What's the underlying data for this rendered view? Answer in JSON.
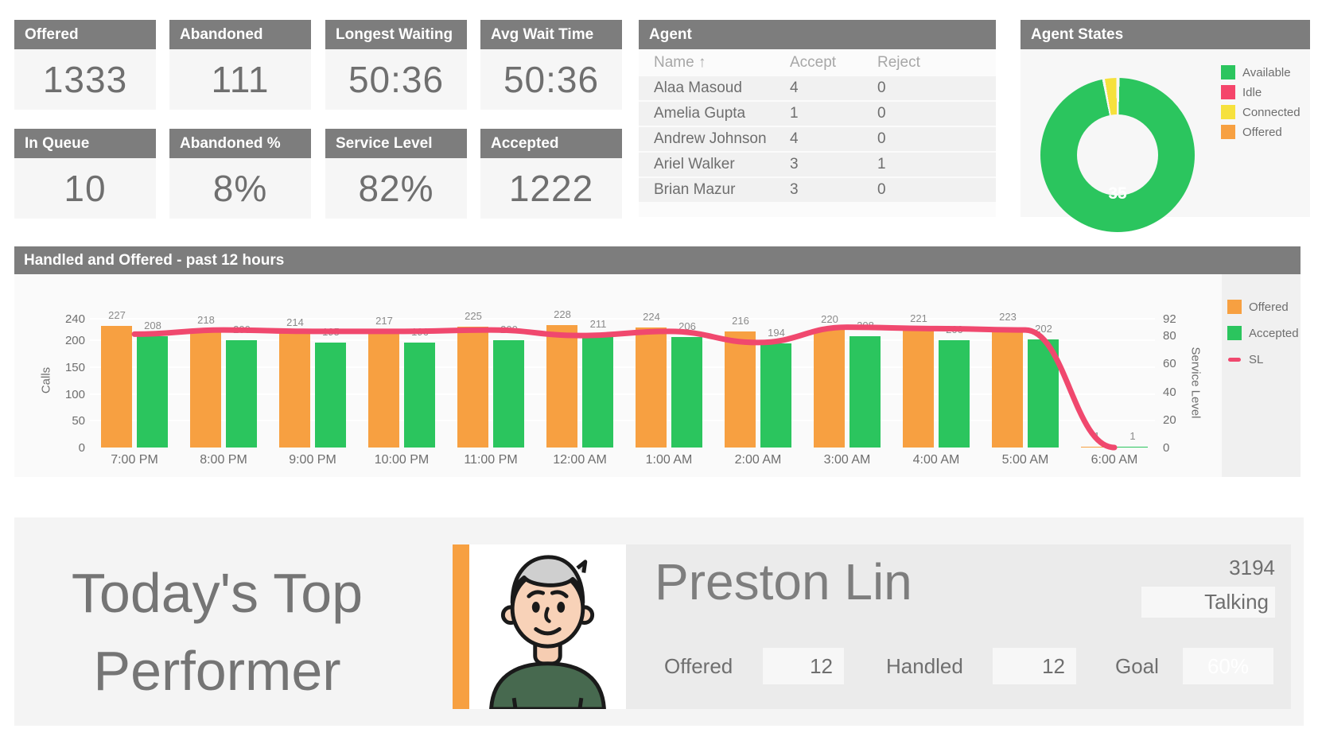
{
  "colors": {
    "header_gray": "#7d7d7d",
    "card_body": "#f6f6f6",
    "value_text": "#6f6f6f",
    "orange": "#f7a041",
    "green": "#2bc55e",
    "pink": "#f0486e",
    "yellow": "#f6e13d",
    "chart_bg": "#fafafa",
    "legend_panel": "#f0f0f0",
    "row_gray": "#f1f1f1",
    "bottom_panel": "#f4f4f4",
    "info_panel": "#ebebeb",
    "chip_bg": "#f7f7f7"
  },
  "kpi_cards": [
    {
      "label": "Offered",
      "value": "1333"
    },
    {
      "label": "Abandoned",
      "value": "111"
    },
    {
      "label": "Longest Waiting",
      "value": "50:36"
    },
    {
      "label": "Avg Wait Time",
      "value": "50:36"
    },
    {
      "label": "In Queue",
      "value": "10"
    },
    {
      "label": "Abandoned %",
      "value": "8%"
    },
    {
      "label": "Service Level",
      "value": "82%"
    },
    {
      "label": "Accepted",
      "value": "1222"
    }
  ],
  "agent_table": {
    "title": "Agent",
    "columns": [
      "Name ↑",
      "Accept",
      "Reject"
    ],
    "rows": [
      {
        "name": "Alaa Masoud",
        "accept": "4",
        "reject": "0"
      },
      {
        "name": "Amelia Gupta",
        "accept": "1",
        "reject": "0"
      },
      {
        "name": "Andrew Johnson",
        "accept": "4",
        "reject": "0"
      },
      {
        "name": "Ariel Walker",
        "accept": "3",
        "reject": "1"
      },
      {
        "name": "Brian Mazur",
        "accept": "3",
        "reject": "0"
      }
    ]
  },
  "agent_states": {
    "title": "Agent States",
    "center_label": "35",
    "legend": [
      {
        "label": "Available",
        "color": "#2bc55e"
      },
      {
        "label": "Idle",
        "color": "#f5456b"
      },
      {
        "label": "Connected",
        "color": "#f6e13d"
      },
      {
        "label": "Offered",
        "color": "#f7a041"
      }
    ],
    "segments": [
      {
        "label": "Available",
        "color": "#2bc55e",
        "start_deg": 1.5,
        "end_deg": 348.5
      },
      {
        "label": "Connected",
        "color": "#f6e13d",
        "start_deg": 350.5,
        "end_deg": 359.0
      }
    ]
  },
  "chart_data": [
    {
      "type": "bar",
      "title": "Handled and Offered - past 12 hours",
      "categories": [
        "7:00 PM",
        "8:00 PM",
        "9:00 PM",
        "10:00 PM",
        "11:00 PM",
        "12:00 AM",
        "1:00 AM",
        "2:00 AM",
        "3:00 AM",
        "4:00 AM",
        "5:00 AM",
        "6:00 AM"
      ],
      "series": [
        {
          "name": "Offered",
          "type": "bar",
          "color": "#f7a041",
          "values": [
            227,
            218,
            214,
            217,
            225,
            228,
            224,
            216,
            220,
            221,
            223,
            1
          ]
        },
        {
          "name": "Accepted",
          "type": "bar",
          "color": "#2bc55e",
          "values": [
            208,
            200,
            195,
            196,
            200,
            211,
            206,
            194,
            208,
            200,
            202,
            1
          ]
        },
        {
          "name": "SL",
          "type": "line",
          "color": "#f0486e",
          "values": [
            81,
            84,
            83,
            83,
            84,
            80,
            83,
            75,
            86,
            85,
            84,
            0
          ]
        }
      ],
      "ylabel": "Calls",
      "ylim": [
        0,
        240
      ],
      "y_ticks": [
        0,
        50,
        100,
        150,
        200,
        240
      ],
      "y2label": "Service Level",
      "y2lim": [
        0,
        92
      ],
      "y2_ticks": [
        0,
        20,
        40,
        60,
        80,
        92
      ],
      "legend": [
        "Offered",
        "Accepted",
        "SL"
      ],
      "legend_position": "right",
      "grid": true
    },
    {
      "type": "pie",
      "title": "Agent States",
      "categories": [
        "Available",
        "Idle",
        "Connected",
        "Offered"
      ],
      "values": [
        35,
        0,
        1,
        0
      ],
      "center_label": "35"
    }
  ],
  "top_performer": {
    "heading_line1": "Today's Top",
    "heading_line2": "Performer",
    "name": "Preston Lin",
    "talk_value": "3194",
    "talk_state": "Talking",
    "stats": [
      {
        "label": "Offered",
        "value": "12"
      },
      {
        "label": "Handled",
        "value": "12"
      },
      {
        "label": "Goal",
        "value": "60%"
      }
    ]
  }
}
